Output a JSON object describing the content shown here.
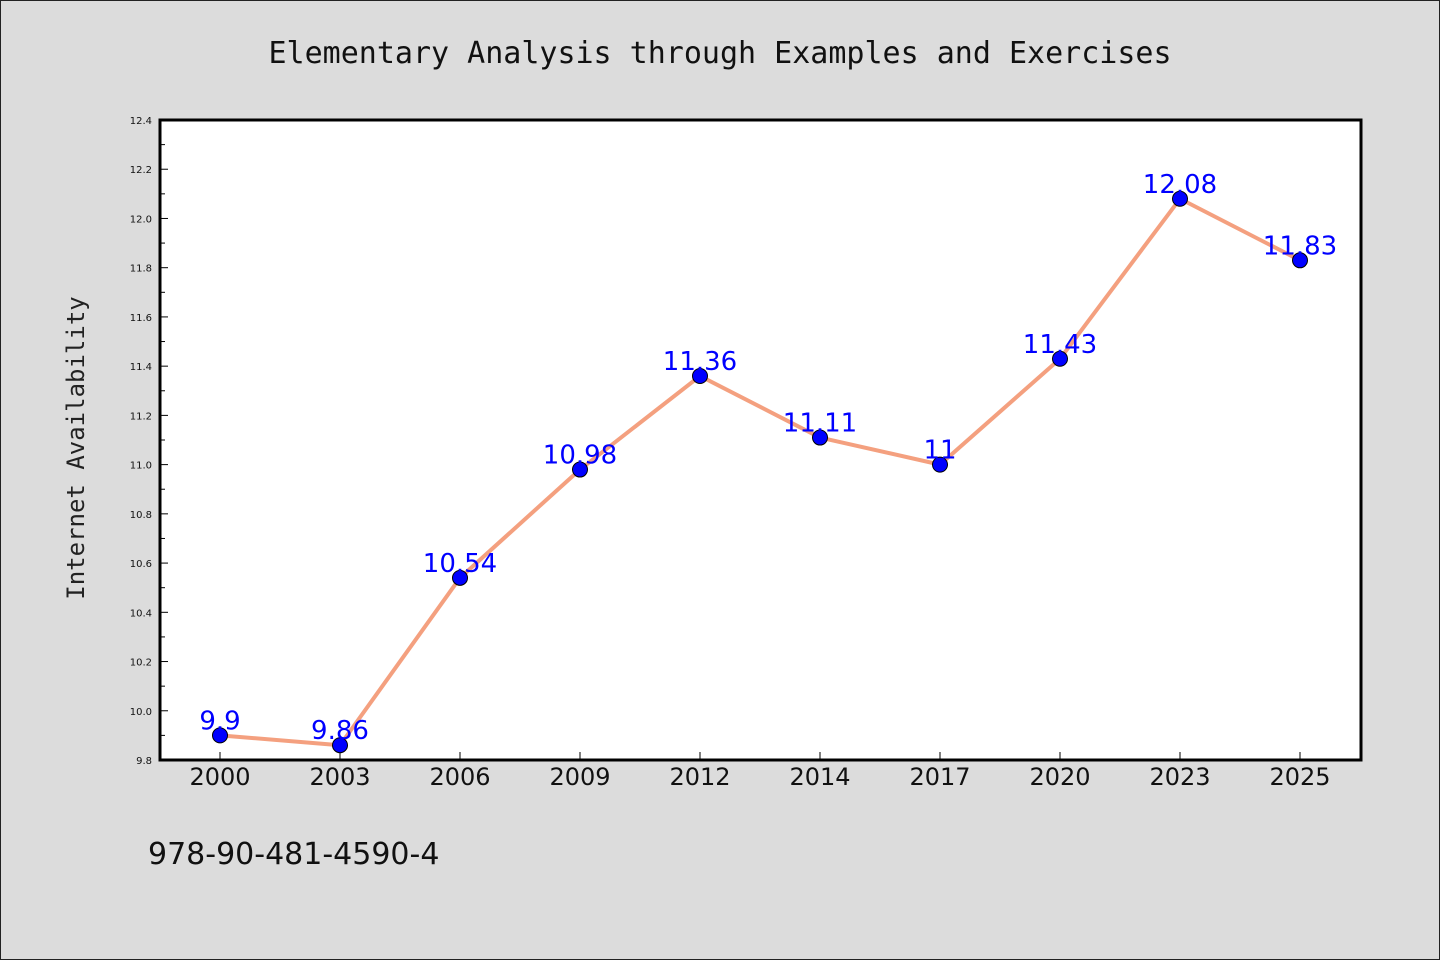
{
  "chart_data": {
    "type": "line",
    "title": "Elementary Analysis through Examples and Exercises",
    "xlabel": "",
    "ylabel": "Internet Availability",
    "categories": [
      "2000",
      "2003",
      "2006",
      "2009",
      "2012",
      "2014",
      "2017",
      "2020",
      "2023",
      "2025"
    ],
    "series": [
      {
        "values": [
          9.9,
          9.86,
          10.54,
          10.98,
          11.36,
          11.11,
          11.0,
          11.43,
          12.08,
          11.83
        ],
        "labels": [
          "9.9",
          "9.86",
          "10.54",
          "10.98",
          "11.36",
          "11.11",
          "11",
          "11.43",
          "12.08",
          "11.83"
        ]
      }
    ],
    "ylim": [
      9.8,
      12.4
    ],
    "yticks": [
      "9.8",
      "10.0",
      "10.2",
      "10.4",
      "10.6",
      "10.8",
      "11.0",
      "11.2",
      "11.4",
      "11.6",
      "11.8",
      "12.0",
      "12.2",
      "12.4"
    ],
    "grid": false,
    "legend": "none",
    "colors": {
      "line": "#f4a07f",
      "marker": "#0000ff",
      "data_label": "#0000ff",
      "plot_background": "#ffffff",
      "figure_background": "#dcdcdc"
    }
  },
  "footer": {
    "isbn": "978-90-481-4590-4"
  }
}
